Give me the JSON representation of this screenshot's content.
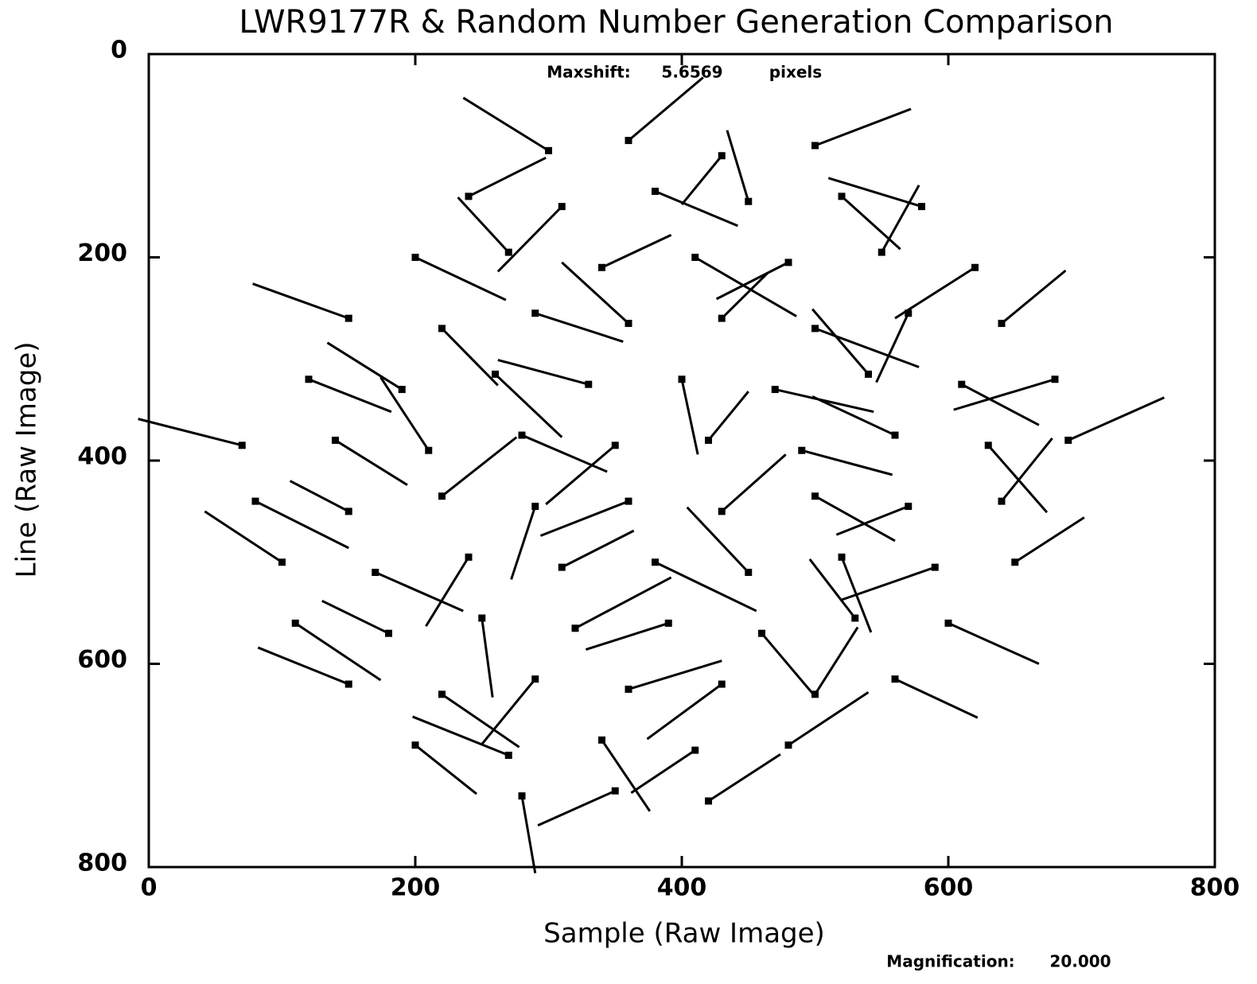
{
  "chart_data": {
    "type": "quiver",
    "title": "LWR9177R & Random Number Generation Comparison",
    "xlabel": "Sample  (Raw Image)",
    "ylabel": "Line  (Raw Image)",
    "maxshift_label": "Maxshift:",
    "maxshift": 5.6569,
    "maxshift_unit": "pixels",
    "magnification_label": "Magnification:",
    "magnification": {
      "value": 20,
      "label": "20.000"
    },
    "xlim": [
      0,
      800
    ],
    "xticks": [
      0,
      200,
      400,
      600,
      800
    ],
    "ylim": [
      800,
      0
    ],
    "yticks": [
      0,
      200,
      400,
      600,
      800
    ],
    "color": "#000000",
    "x": [
      300,
      360,
      430,
      500,
      240,
      310,
      380,
      450,
      520,
      580,
      200,
      270,
      340,
      410,
      480,
      550,
      620,
      150,
      220,
      290,
      360,
      430,
      500,
      570,
      640,
      120,
      190,
      260,
      330,
      400,
      470,
      540,
      610,
      680,
      70,
      140,
      210,
      280,
      350,
      420,
      490,
      560,
      630,
      690,
      80,
      150,
      220,
      290,
      360,
      430,
      500,
      570,
      640,
      100,
      170,
      240,
      310,
      380,
      450,
      520,
      590,
      650,
      110,
      180,
      250,
      320,
      390,
      460,
      530,
      600,
      150,
      220,
      290,
      360,
      430,
      500,
      560,
      200,
      270,
      340,
      410,
      480,
      280,
      350,
      420
    ],
    "y": [
      95,
      85,
      100,
      90,
      140,
      150,
      135,
      145,
      140,
      150,
      200,
      195,
      210,
      200,
      205,
      195,
      210,
      260,
      270,
      255,
      265,
      260,
      270,
      255,
      265,
      320,
      330,
      315,
      325,
      320,
      330,
      315,
      325,
      320,
      385,
      380,
      390,
      375,
      385,
      380,
      390,
      375,
      385,
      380,
      440,
      450,
      435,
      445,
      440,
      450,
      435,
      445,
      440,
      500,
      510,
      495,
      505,
      500,
      510,
      495,
      505,
      500,
      560,
      570,
      555,
      565,
      560,
      570,
      555,
      560,
      620,
      630,
      615,
      625,
      620,
      630,
      615,
      680,
      690,
      675,
      685,
      680,
      730,
      725,
      735
    ],
    "dx": [
      -3.2,
      2.8,
      -1.5,
      3.6,
      2.9,
      -2.4,
      3.1,
      -0.8,
      2.2,
      -3.5,
      3.4,
      -1.9,
      2.6,
      3.8,
      -2.7,
      1.4,
      -3.0,
      -3.6,
      2.1,
      3.3,
      -2.5,
      1.7,
      3.9,
      -1.2,
      2.4,
      3.1,
      -2.8,
      2.5,
      -3.4,
      0.6,
      3.7,
      -2.1,
      2.9,
      -3.8,
      -3.9,
      2.7,
      -1.8,
      3.2,
      -2.6,
      1.5,
      3.4,
      -3.1,
      2.2,
      3.6,
      3.5,
      -2.2,
      2.8,
      -0.9,
      -3.3,
      2.4,
      3.0,
      -2.7,
      1.9,
      -2.9,
      3.3,
      -1.6,
      2.7,
      3.8,
      -2.3,
      1.1,
      -3.5,
      2.6,
      3.2,
      -2.5,
      0.4,
      3.6,
      -3.1,
      2.0,
      -1.7,
      3.4,
      -3.4,
      2.9,
      -2.0,
      3.5,
      -2.8,
      1.6,
      3.1,
      2.3,
      -3.6,
      1.8,
      -2.4,
      3.0,
      0.5,
      -2.9,
      2.7
    ],
    "dy": [
      -2.6,
      -3.1,
      2.4,
      -1.8,
      -1.9,
      3.2,
      1.7,
      -3.5,
      2.6,
      -1.4,
      2.1,
      -2.7,
      -1.6,
      2.9,
      1.8,
      -3.3,
      2.5,
      -1.7,
      2.8,
      1.4,
      -3.0,
      -2.2,
      1.9,
      3.4,
      -2.6,
      1.6,
      -2.3,
      3.1,
      -1.2,
      3.7,
      1.1,
      -3.2,
      2.0,
      1.5,
      -1.3,
      2.2,
      -3.6,
      1.8,
      2.9,
      -2.4,
      1.2,
      -1.9,
      3.3,
      -2.1,
      2.3,
      -1.5,
      -2.9,
      3.6,
      1.7,
      -2.8,
      2.2,
      1.4,
      -3.1,
      -2.5,
      1.9,
      3.4,
      -1.8,
      2.4,
      -3.2,
      3.7,
      1.6,
      -2.2,
      2.8,
      -1.6,
      3.9,
      -2.5,
      1.3,
      3.1,
      -2.9,
      2.0,
      -1.8,
      2.6,
      3.2,
      -1.4,
      2.7,
      -3.3,
      1.9,
      2.4,
      -1.9,
      3.5,
      2.1,
      -2.6,
      3.8,
      1.7,
      -2.3
    ]
  }
}
